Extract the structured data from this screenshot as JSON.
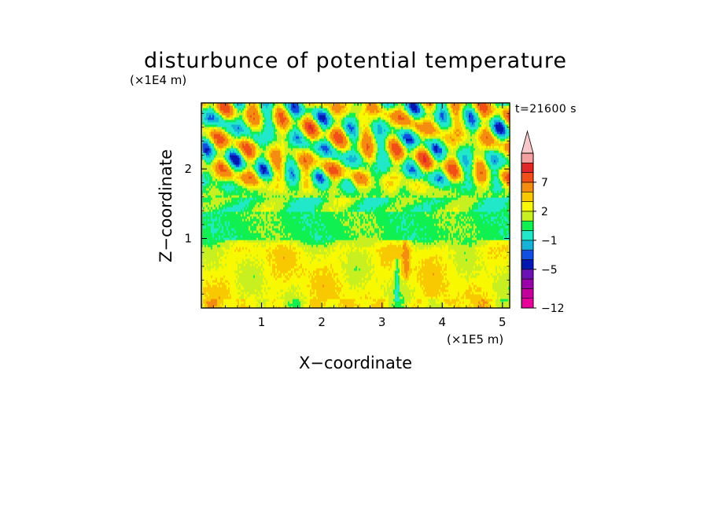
{
  "chart_data": {
    "type": "heatmap",
    "title": "disturbunce of potential temperature",
    "xlabel": "X−coordinate",
    "ylabel": "Z−coordinate",
    "x_unit": "(×1E5 m)",
    "y_unit": "(×1E4 m)",
    "time_label": "t=21600 s",
    "xlim": [
      0,
      5.12
    ],
    "ylim": [
      0,
      2.95
    ],
    "x_ticks": [
      {
        "value": 1,
        "label": "1"
      },
      {
        "value": 2,
        "label": "2"
      },
      {
        "value": 3,
        "label": "3"
      },
      {
        "value": 4,
        "label": "4"
      },
      {
        "value": 5,
        "label": "5"
      }
    ],
    "y_ticks": [
      {
        "value": 1,
        "label": "1"
      },
      {
        "value": 2,
        "label": "2"
      }
    ],
    "colorbar": {
      "levels": [
        -12,
        -11,
        -9,
        -7,
        -5,
        -4,
        -3,
        -1,
        0,
        1,
        2,
        3,
        5,
        7,
        9,
        11
      ],
      "colors": [
        "#e8009a",
        "#c4009a",
        "#9a00a8",
        "#6a12b4",
        "#0018b0",
        "#1050e0",
        "#14b4d8",
        "#20e8c8",
        "#10f050",
        "#c8f020",
        "#f8f800",
        "#f8c800",
        "#f48c10",
        "#f05018",
        "#e02828",
        "#f4a0a0",
        "#f8c8c8"
      ],
      "labels": [
        {
          "value": -12,
          "label": "−12"
        },
        {
          "value": -5,
          "label": "−5"
        },
        {
          "value": -1,
          "label": "−1"
        },
        {
          "value": 2,
          "label": "2"
        },
        {
          "value": 7,
          "label": "7"
        }
      ]
    },
    "field_description": [
      {
        "z_range": [
          0.0,
          1.0
        ],
        "x_range": [
          0.0,
          5.12
        ],
        "dominant_value": 1.5
      },
      {
        "z_range": [
          1.0,
          1.6
        ],
        "x_range": [
          0.0,
          5.12
        ],
        "dominant_value": -0.5
      },
      {
        "z_range": [
          1.6,
          2.95
        ],
        "x_range": [
          0.0,
          5.12
        ],
        "dominant_value": 0.5,
        "variance": 6
      }
    ]
  }
}
